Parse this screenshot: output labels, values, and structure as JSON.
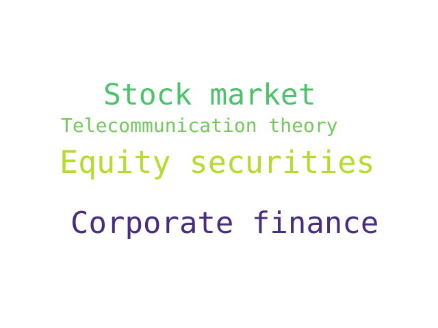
{
  "words": [
    {
      "text": "Stock market",
      "color": "#4cc26b"
    },
    {
      "text": "Telecommunication theory",
      "color": "#73c95b"
    },
    {
      "text": "Equity securities",
      "color": "#b5dc2c"
    },
    {
      "text": "Corporate finance",
      "color": "#472d7b"
    }
  ]
}
